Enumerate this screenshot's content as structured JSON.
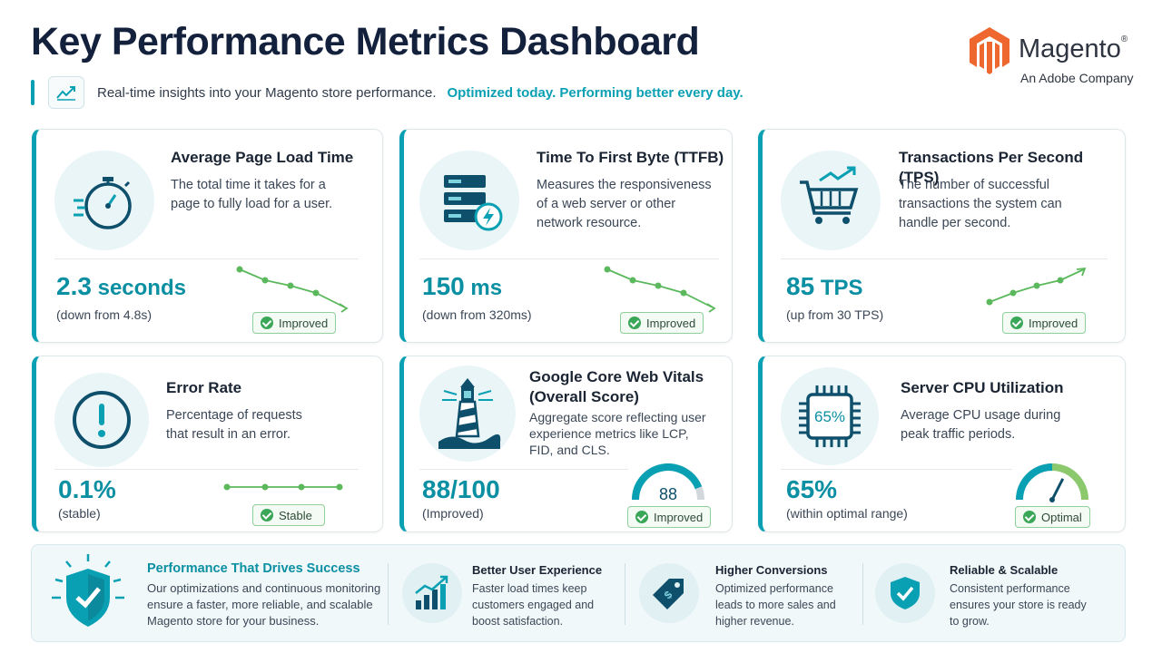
{
  "header": {
    "title": "Key Performance Metrics Dashboard",
    "subtitle": "Real-time insights into your Magento store performance.",
    "subtitle_accent": "Optimized today. Performing better every day."
  },
  "brand": {
    "name": "Magento",
    "trademark": "®",
    "tagline": "An Adobe Company",
    "color": "#ee672f"
  },
  "colors": {
    "accent": "#0aa0b3",
    "value_text": "#0b8fa2",
    "success": "#3aa657",
    "spark": "#5cb85c"
  },
  "cards": [
    {
      "icon": "stopwatch-icon",
      "title": "Average Page Load Time",
      "description_lines": [
        "The total time it takes for a",
        "page to fully load for a user."
      ],
      "value": "2.3",
      "unit": " seconds",
      "note": "(down from 4.8s)",
      "badge": "Improved",
      "trend": "down"
    },
    {
      "icon": "server-bolt-icon",
      "title": "Time To First Byte (TTFB)",
      "description_lines": [
        "Measures the responsiveness",
        "of a web server or other",
        "network resource."
      ],
      "value": "150",
      "unit": " ms",
      "note": "(down from 320ms)",
      "badge": "Improved",
      "trend": "down"
    },
    {
      "icon": "cart-trend-icon",
      "title": "Transactions Per Second (TPS)",
      "description_lines": [
        "The number of successful",
        "transactions the system can",
        "handle per second."
      ],
      "value": "85",
      "unit": " TPS",
      "note": "(up from 30 TPS)",
      "badge": "Improved",
      "trend": "up"
    },
    {
      "icon": "exclamation-circle-icon",
      "title": "Error Rate",
      "description_lines": [
        "Percentage of requests",
        "that result in an error."
      ],
      "value": "0.1%",
      "unit": "",
      "note": "(stable)",
      "badge": "Stable",
      "trend": "flat"
    },
    {
      "icon": "lighthouse-icon",
      "title_lines": [
        "Google Core Web Vitals",
        "(Overall Score)"
      ],
      "description_lines": [
        "Aggregate score reflecting user",
        "experience metrics like LCP,",
        "FID, and CLS."
      ],
      "value": "88/100",
      "unit": "",
      "note": "(Improved)",
      "badge": "Improved",
      "gauge_value": "88",
      "gauge_fraction": 0.88
    },
    {
      "icon": "cpu-chip-icon",
      "chip_label": "65%",
      "title": "Server CPU Utilization",
      "description_lines": [
        "Average CPU usage during",
        "peak traffic periods."
      ],
      "value": "65%",
      "unit": "",
      "note": "(within optimal range)",
      "badge": "Optimal",
      "gauge_fraction": 0.65
    }
  ],
  "footer": {
    "main": {
      "title": "Performance That Drives Success",
      "lines": [
        "Our optimizations and continuous monitoring",
        "ensure a faster, more reliable, and scalable",
        "Magento store for your business."
      ]
    },
    "items": [
      {
        "icon": "bar-chart-growth-icon",
        "title": "Better User Experience",
        "lines": [
          "Faster load times keep",
          "customers engaged and",
          "boost satisfaction."
        ]
      },
      {
        "icon": "price-tag-icon",
        "title": "Higher Conversions",
        "lines": [
          "Optimized performance",
          "leads to more sales and",
          "higher revenue."
        ]
      },
      {
        "icon": "shield-check-icon",
        "title": "Reliable & Scalable",
        "lines": [
          "Consistent performance",
          "ensures your store is ready",
          "to grow."
        ]
      }
    ]
  }
}
